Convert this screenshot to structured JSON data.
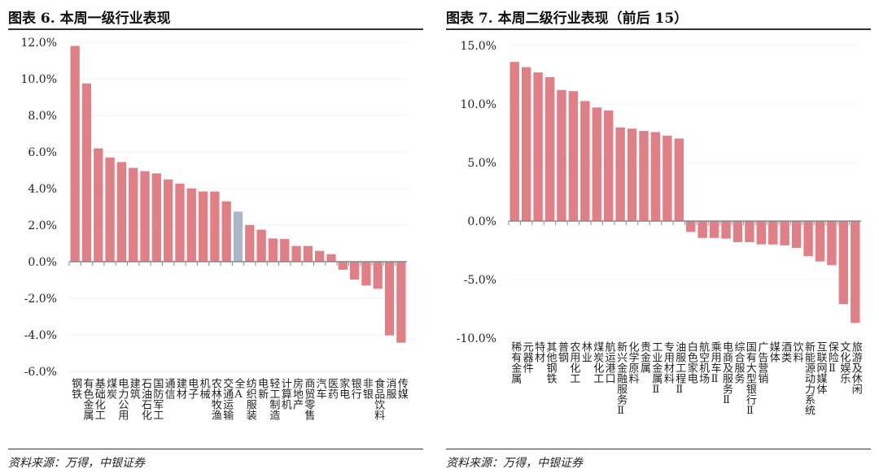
{
  "colors": {
    "bar": "#e07f86",
    "highlight": "#aab7c9",
    "grid": "#f0f0f0",
    "axis": "#888"
  },
  "left": {
    "title": "图表 6. 本周一级行业表现",
    "source": "资料来源：万得，中银证券"
  },
  "right": {
    "title": "图表 7. 本周二级行业表现（前后 15）",
    "source": "资料来源：万得，中银证券"
  },
  "chart_data": [
    {
      "type": "bar",
      "title": "本周一级行业表现",
      "ylim": [
        -6,
        12
      ],
      "yticks": [
        "12.0%",
        "10.0%",
        "8.0%",
        "6.0%",
        "4.0%",
        "2.0%",
        "0.0%",
        "-2.0%",
        "-4.0%",
        "-6.0%"
      ],
      "ytick_values": [
        12,
        10,
        8,
        6,
        4,
        2,
        0,
        -2,
        -4,
        -6
      ],
      "highlight": "全A",
      "categories": [
        "钢铁",
        "有色金属",
        "基础化工",
        "煤炭",
        "电力公用",
        "建筑",
        "石油石化",
        "国防军工",
        "通信",
        "建材",
        "电子",
        "机械",
        "农林牧渔",
        "交通运输",
        "全A",
        "纺织服装",
        "电新",
        "轻工制造",
        "计算机",
        "房地产",
        "商贸零售",
        "汽车",
        "医药",
        "家电",
        "银行",
        "非银",
        "食品饮料",
        "消服",
        "传媒"
      ],
      "values": [
        11.8,
        9.75,
        6.2,
        5.7,
        5.45,
        5.13,
        4.95,
        4.83,
        4.5,
        4.27,
        4.01,
        3.84,
        3.84,
        3.3,
        2.74,
        2.01,
        1.75,
        1.27,
        1.24,
        0.86,
        0.86,
        0.59,
        0.41,
        -0.44,
        -0.98,
        -1.3,
        -1.48,
        -4.03,
        -4.43
      ]
    },
    {
      "type": "bar",
      "title": "本周二级行业表现（前后 15）",
      "ylim": [
        -10,
        15
      ],
      "yticks": [
        "15.0%",
        "10.0%",
        "5.0%",
        "0.0%",
        "-5.0%",
        "-10.0%"
      ],
      "ytick_values": [
        15,
        10,
        5,
        0,
        -5,
        -10
      ],
      "categories": [
        "稀有金属",
        "元器件",
        "特材",
        "其他钢铁",
        "普钢",
        "农用化工",
        "林业",
        "煤炭化工",
        "航运港口",
        "新兴金融服务Ⅱ",
        "化学原料",
        "贵金属",
        "工业金属Ⅱ",
        "专用材料",
        "油服工程Ⅱ",
        "白色家电",
        "航空机场",
        "乘用车Ⅱ",
        "电商及服务Ⅱ",
        "综合服务",
        "国有大型银行Ⅱ",
        "广告营销",
        "媒体",
        "酒类",
        "饮料",
        "新能源动力系统",
        "互联网媒体",
        "保险Ⅱ",
        "文化娱乐",
        "旅游及休闲"
      ],
      "values": [
        13.6,
        13.15,
        12.7,
        12.3,
        11.2,
        11.1,
        10.25,
        9.7,
        9.45,
        8.0,
        7.9,
        7.7,
        7.6,
        7.3,
        7.05,
        -0.93,
        -1.44,
        -1.44,
        -1.5,
        -1.8,
        -1.8,
        -1.99,
        -2.0,
        -2.08,
        -2.29,
        -3.0,
        -3.45,
        -3.77,
        -7.1,
        -8.7
      ]
    }
  ]
}
